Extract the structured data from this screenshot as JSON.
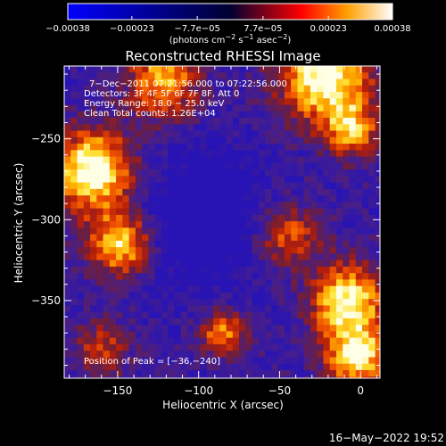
{
  "chart_data": {
    "type": "heatmap",
    "title": "Reconstructed RHESSI Image",
    "xlabel": "Heliocentric X (arcsec)",
    "ylabel": "Heliocentric Y (arcsec)",
    "xlim": [
      -183,
      12
    ],
    "ylim": [
      -398,
      -205
    ],
    "x_ticks": [
      -150,
      -100,
      -50,
      0
    ],
    "x_tick_labels": [
      "−150",
      "−100",
      "−50",
      "0"
    ],
    "y_ticks": [
      -250,
      -300,
      -350
    ],
    "y_tick_labels": [
      "−250",
      "−300",
      "−350"
    ],
    "colorbar": {
      "min": -0.00038,
      "max": 0.00038,
      "tick_values": [
        -0.00038,
        -0.00023,
        -7.7e-05,
        7.7e-05,
        0.00023,
        0.00038
      ],
      "tick_labels": [
        "−0.00038",
        "−0.00023",
        "−7.7e−05",
        "7.7e−05",
        "0.00023",
        "0.00038"
      ],
      "unit_main": "(photons cm",
      "unit_sup1": "−2",
      "unit_mid": " s",
      "unit_sup2": "−1",
      "unit_end": " asec",
      "unit_sup3": "−2",
      "unit_close": ")",
      "colors": [
        "#0000ff",
        "#000030",
        "#ff0000",
        "#ffa000",
        "#ffffff"
      ]
    },
    "annotations": [
      "7−Dec−2011 07:21:56.000 to 07:22:56.000",
      "Detectors: 3F 4F 5F 6F 7F 8F, Att 0",
      "Energy Range: 18.0 − 25.0 keV",
      "Clean     Total counts: 1.26E+04"
    ],
    "peak_label": "Position of Peak = [−36,−240]",
    "peak": [
      -36,
      -240
    ],
    "intensity_sources": [
      {
        "x": -165,
        "y": -270,
        "amp": 1.0,
        "sigma": 18
      },
      {
        "x": -148,
        "y": -315,
        "amp": 0.85,
        "sigma": 14
      },
      {
        "x": -122,
        "y": -215,
        "amp": 0.7,
        "sigma": 16
      },
      {
        "x": -22,
        "y": -212,
        "amp": 0.95,
        "sigma": 20
      },
      {
        "x": -5,
        "y": -245,
        "amp": 0.6,
        "sigma": 12
      },
      {
        "x": -8,
        "y": -350,
        "amp": 0.9,
        "sigma": 16
      },
      {
        "x": -2,
        "y": -385,
        "amp": 0.85,
        "sigma": 14
      },
      {
        "x": -45,
        "y": -310,
        "amp": 0.55,
        "sigma": 14
      },
      {
        "x": -85,
        "y": -370,
        "amp": 0.65,
        "sigma": 10
      },
      {
        "x": -160,
        "y": -380,
        "amp": 0.45,
        "sigma": 12
      },
      {
        "x": -100,
        "y": -300,
        "amp": -0.35,
        "sigma": 30
      }
    ]
  },
  "footer": {
    "timestamp": "16−May−2022 19:52"
  }
}
